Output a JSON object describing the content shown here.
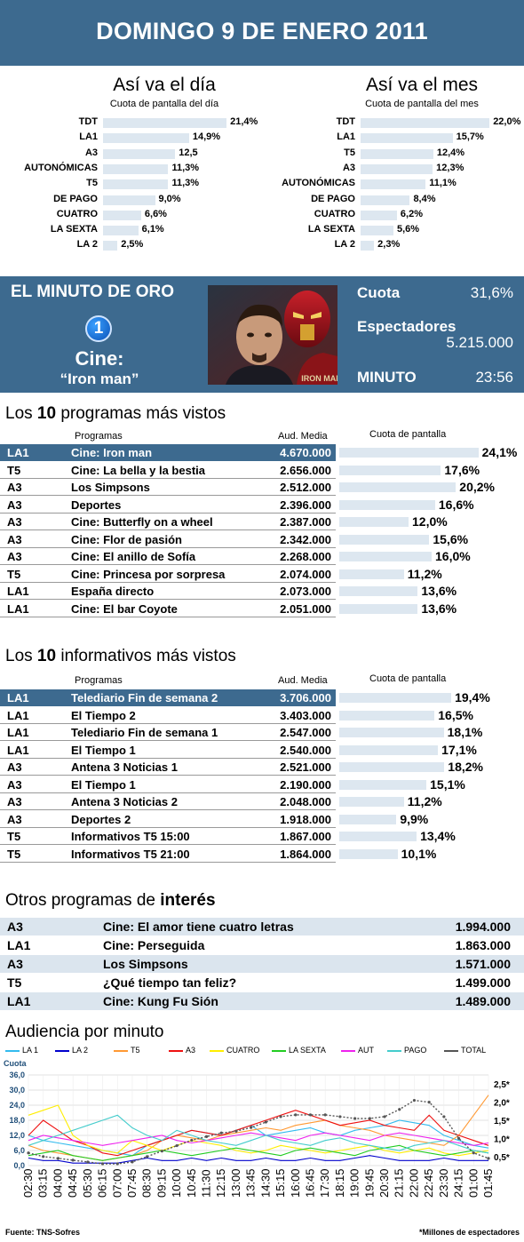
{
  "header": {
    "title": "DOMINGO 9 DE ENERO 2011"
  },
  "dia": {
    "title": "Así va el día",
    "subtitle": "Cuota de pantalla del día",
    "items": [
      {
        "label": "TDT",
        "value": "21,4%",
        "pct": 21.4
      },
      {
        "label": "LA1",
        "value": "14,9%",
        "pct": 14.9
      },
      {
        "label": "A3",
        "value": "12,5",
        "pct": 12.5
      },
      {
        "label": "AUTONÓMICAS",
        "value": "11,3%",
        "pct": 11.3
      },
      {
        "label": "T5",
        "value": "11,3%",
        "pct": 11.3
      },
      {
        "label": "DE PAGO",
        "value": "9,0%",
        "pct": 9.0
      },
      {
        "label": "CUATRO",
        "value": "6,6%",
        "pct": 6.6
      },
      {
        "label": "LA SEXTA",
        "value": "6,1%",
        "pct": 6.1
      },
      {
        "label": "LA 2",
        "value": "2,5%",
        "pct": 2.5
      }
    ]
  },
  "mes": {
    "title": "Así va el mes",
    "subtitle": "Cuota de pantalla del mes",
    "items": [
      {
        "label": "TDT",
        "value": "22,0%",
        "pct": 22.0
      },
      {
        "label": "LA1",
        "value": "15,7%",
        "pct": 15.7
      },
      {
        "label": "T5",
        "value": "12,4%",
        "pct": 12.4
      },
      {
        "label": "A3",
        "value": "12,3%",
        "pct": 12.3
      },
      {
        "label": "AUTONÓMICAS",
        "value": "11,1%",
        "pct": 11.1
      },
      {
        "label": "DE PAGO",
        "value": "8,4%",
        "pct": 8.4
      },
      {
        "label": "CUATRO",
        "value": "6,2%",
        "pct": 6.2
      },
      {
        "label": "LA SEXTA",
        "value": "5,6%",
        "pct": 5.6
      },
      {
        "label": "LA 2",
        "value": "2,3%",
        "pct": 2.3
      }
    ]
  },
  "minuto_oro": {
    "title": "EL MINUTO DE ORO",
    "channel_logo": "1",
    "program_type": "Cine:",
    "program_name": "“Iron man”",
    "cuota_label": "Cuota",
    "cuota_value": "31,6%",
    "espectadores_label": "Espectadores",
    "espectadores_value": "5.215.000",
    "minuto_label": "MINUTO",
    "minuto_value": "23:56",
    "poster_text": "IRON MAN"
  },
  "programas": {
    "title_prefix": "Los ",
    "title_num": "10",
    "title_suffix": " programas más vistos",
    "col_programas": "Programas",
    "col_aud": "Aud. Media",
    "col_cuota": "Cuota de pantalla",
    "rows": [
      {
        "ch": "LA1",
        "name": "Cine: Iron man",
        "aud": "4.670.000",
        "share": "24,1%",
        "pct": 24.1
      },
      {
        "ch": "T5",
        "name": "Cine: La bella y la bestia",
        "aud": "2.656.000",
        "share": "17,6%",
        "pct": 17.6
      },
      {
        "ch": "A3",
        "name": "Los Simpsons",
        "aud": "2.512.000",
        "share": "20,2%",
        "pct": 20.2
      },
      {
        "ch": "A3",
        "name": "Deportes",
        "aud": "2.396.000",
        "share": "16,6%",
        "pct": 16.6
      },
      {
        "ch": "A3",
        "name": "Cine: Butterfly on a wheel",
        "aud": "2.387.000",
        "share": "12,0%",
        "pct": 12.0
      },
      {
        "ch": "A3",
        "name": "Cine: Flor de pasión",
        "aud": "2.342.000",
        "share": "15,6%",
        "pct": 15.6
      },
      {
        "ch": "A3",
        "name": "Cine: El anillo de Sofía",
        "aud": "2.268.000",
        "share": "16,0%",
        "pct": 16.0
      },
      {
        "ch": "T5",
        "name": "Cine: Princesa por sorpresa",
        "aud": "2.074.000",
        "share": "11,2%",
        "pct": 11.2
      },
      {
        "ch": "LA1",
        "name": "España directo",
        "aud": "2.073.000",
        "share": "13,6%",
        "pct": 13.6
      },
      {
        "ch": "LA1",
        "name": "Cine: El bar Coyote",
        "aud": "2.051.000",
        "share": "13,6%",
        "pct": 13.6
      }
    ]
  },
  "informativos": {
    "title_prefix": "Los ",
    "title_num": "10",
    "title_suffix": " informativos más vistos",
    "col_programas": "Programas",
    "col_aud": "Aud. Media",
    "col_cuota": "Cuota de pantalla",
    "rows": [
      {
        "ch": "LA1",
        "name": "Telediario Fin de semana 2",
        "aud": "3.706.000",
        "share": "19,4%",
        "pct": 19.4
      },
      {
        "ch": "LA1",
        "name": "El Tiempo 2",
        "aud": "3.403.000",
        "share": "16,5%",
        "pct": 16.5
      },
      {
        "ch": "LA1",
        "name": "Telediario Fin de semana 1",
        "aud": "2.547.000",
        "share": "18,1%",
        "pct": 18.1
      },
      {
        "ch": "LA1",
        "name": "El Tiempo 1",
        "aud": "2.540.000",
        "share": "17,1%",
        "pct": 17.1
      },
      {
        "ch": "A3",
        "name": "Antena 3 Noticias 1",
        "aud": "2.521.000",
        "share": "18,2%",
        "pct": 18.2
      },
      {
        "ch": "A3",
        "name": "El Tiempo 1",
        "aud": "2.190.000",
        "share": "15,1%",
        "pct": 15.1
      },
      {
        "ch": "A3",
        "name": "Antena 3 Noticias 2",
        "aud": "2.048.000",
        "share": "11,2%",
        "pct": 11.2
      },
      {
        "ch": "A3",
        "name": "Deportes 2",
        "aud": "1.918.000",
        "share": "9,9%",
        "pct": 9.9
      },
      {
        "ch": "T5",
        "name": "Informativos T5 15:00",
        "aud": "1.867.000",
        "share": "13,4%",
        "pct": 13.4
      },
      {
        "ch": "T5",
        "name": "Informativos T5 21:00",
        "aud": "1.864.000",
        "share": "10,1%",
        "pct": 10.1
      }
    ]
  },
  "otros": {
    "title_prefix": "Otros programas de ",
    "title_bold": "interés",
    "rows": [
      {
        "ch": "A3",
        "name": "Cine: El amor tiene cuatro letras",
        "aud": "1.994.000"
      },
      {
        "ch": "LA1",
        "name": "Cine: Perseguida",
        "aud": "1.863.000"
      },
      {
        "ch": "A3",
        "name": "Los Simpsons",
        "aud": "1.571.000"
      },
      {
        "ch": "T5",
        "name": "¿Qué tiempo tan feliz?",
        "aud": "1.499.000"
      },
      {
        "ch": "LA1",
        "name": "Cine: Kung Fu Sión",
        "aud": "1.489.000"
      }
    ]
  },
  "chart_data": {
    "type": "line",
    "title": "Audiencia por minuto",
    "ylabel": "Cuota",
    "y_ticks": [
      "36,0",
      "30,0",
      "24,0",
      "18,0",
      "12,0",
      "6,0",
      "0,0"
    ],
    "y2_ticks": [
      "2,5*",
      "2,0*",
      "1,5*",
      "1,0*",
      "0,5*"
    ],
    "ylim": [
      0,
      36
    ],
    "y2lim": [
      0.25,
      2.75
    ],
    "x": [
      "02:30",
      "03:15",
      "04:00",
      "04:45",
      "05:30",
      "06:15",
      "07:00",
      "07:45",
      "08:30",
      "09:15",
      "10:00",
      "10:45",
      "11:30",
      "12:15",
      "13:00",
      "13:45",
      "14:30",
      "15:15",
      "16:00",
      "16:45",
      "17:30",
      "18:15",
      "19:00",
      "19:45",
      "20:30",
      "21:15",
      "22:00",
      "22:45",
      "23:30",
      "24:15",
      "01:00",
      "01:45"
    ],
    "grid": true,
    "legend_position": "top",
    "series": [
      {
        "name": "LA 1",
        "color": "#33bbee",
        "values": [
          12,
          10,
          9,
          8,
          7,
          6,
          5,
          4,
          8,
          10,
          12,
          14,
          13,
          12,
          14,
          16,
          12,
          13,
          14,
          15,
          13,
          12,
          14,
          15,
          16,
          18,
          17,
          16,
          12,
          10,
          8,
          7
        ]
      },
      {
        "name": "LA 2",
        "color": "#0000cc",
        "values": [
          3,
          2,
          2,
          1,
          1,
          1,
          1,
          2,
          3,
          2,
          2,
          3,
          2,
          3,
          2,
          2,
          3,
          2,
          2,
          3,
          2,
          2,
          3,
          4,
          3,
          2,
          2,
          2,
          3,
          2,
          2,
          2
        ]
      },
      {
        "name": "T5",
        "color": "#ff9933",
        "values": [
          8,
          6,
          5,
          4,
          3,
          2,
          3,
          4,
          6,
          10,
          12,
          11,
          10,
          12,
          13,
          14,
          15,
          14,
          16,
          17,
          18,
          16,
          15,
          14,
          12,
          11,
          10,
          9,
          8,
          12,
          20,
          28
        ]
      },
      {
        "name": "A3",
        "color": "#ee1111",
        "values": [
          12,
          18,
          14,
          10,
          8,
          5,
          4,
          6,
          8,
          10,
          12,
          14,
          13,
          12,
          14,
          16,
          18,
          20,
          22,
          20,
          18,
          16,
          17,
          18,
          16,
          15,
          14,
          20,
          14,
          12,
          10,
          8
        ]
      },
      {
        "name": "CUATRO",
        "color": "#ffee00",
        "values": [
          20,
          22,
          24,
          12,
          8,
          6,
          5,
          10,
          8,
          6,
          8,
          10,
          9,
          8,
          6,
          5,
          6,
          8,
          7,
          6,
          5,
          6,
          7,
          8,
          6,
          5,
          6,
          7,
          5,
          4,
          5,
          6
        ]
      },
      {
        "name": "LA SEXTA",
        "color": "#22cc22",
        "values": [
          4,
          5,
          6,
          4,
          3,
          2,
          3,
          4,
          5,
          6,
          5,
          4,
          5,
          6,
          7,
          6,
          5,
          4,
          6,
          7,
          6,
          5,
          4,
          6,
          7,
          8,
          6,
          5,
          4,
          5,
          6,
          5
        ]
      },
      {
        "name": "AUT",
        "color": "#ee22ee",
        "values": [
          10,
          12,
          11,
          10,
          9,
          8,
          9,
          10,
          11,
          12,
          10,
          9,
          10,
          11,
          12,
          13,
          12,
          11,
          10,
          12,
          13,
          12,
          11,
          10,
          12,
          13,
          12,
          11,
          10,
          9,
          8,
          9
        ]
      },
      {
        "name": "PAGO",
        "color": "#44cccc",
        "values": [
          8,
          10,
          12,
          14,
          16,
          18,
          20,
          15,
          12,
          10,
          14,
          12,
          10,
          9,
          8,
          10,
          12,
          10,
          9,
          8,
          10,
          11,
          9,
          8,
          7,
          6,
          8,
          9,
          10,
          8,
          6,
          5
        ]
      }
    ],
    "total_series": {
      "name": "TOTAL",
      "color": "#555555",
      "axis": "right",
      "values": [
        0.6,
        0.5,
        0.45,
        0.4,
        0.35,
        0.3,
        0.3,
        0.35,
        0.5,
        0.65,
        0.8,
        0.95,
        1.05,
        1.15,
        1.2,
        1.3,
        1.45,
        1.6,
        1.65,
        1.65,
        1.65,
        1.6,
        1.55,
        1.55,
        1.6,
        1.8,
        2.05,
        2.0,
        1.6,
        1.0,
        0.6,
        0.45
      ]
    },
    "footnote_left": "Fuente: TNS-Sofres",
    "footnote_right": "*Millones de espectadores"
  }
}
